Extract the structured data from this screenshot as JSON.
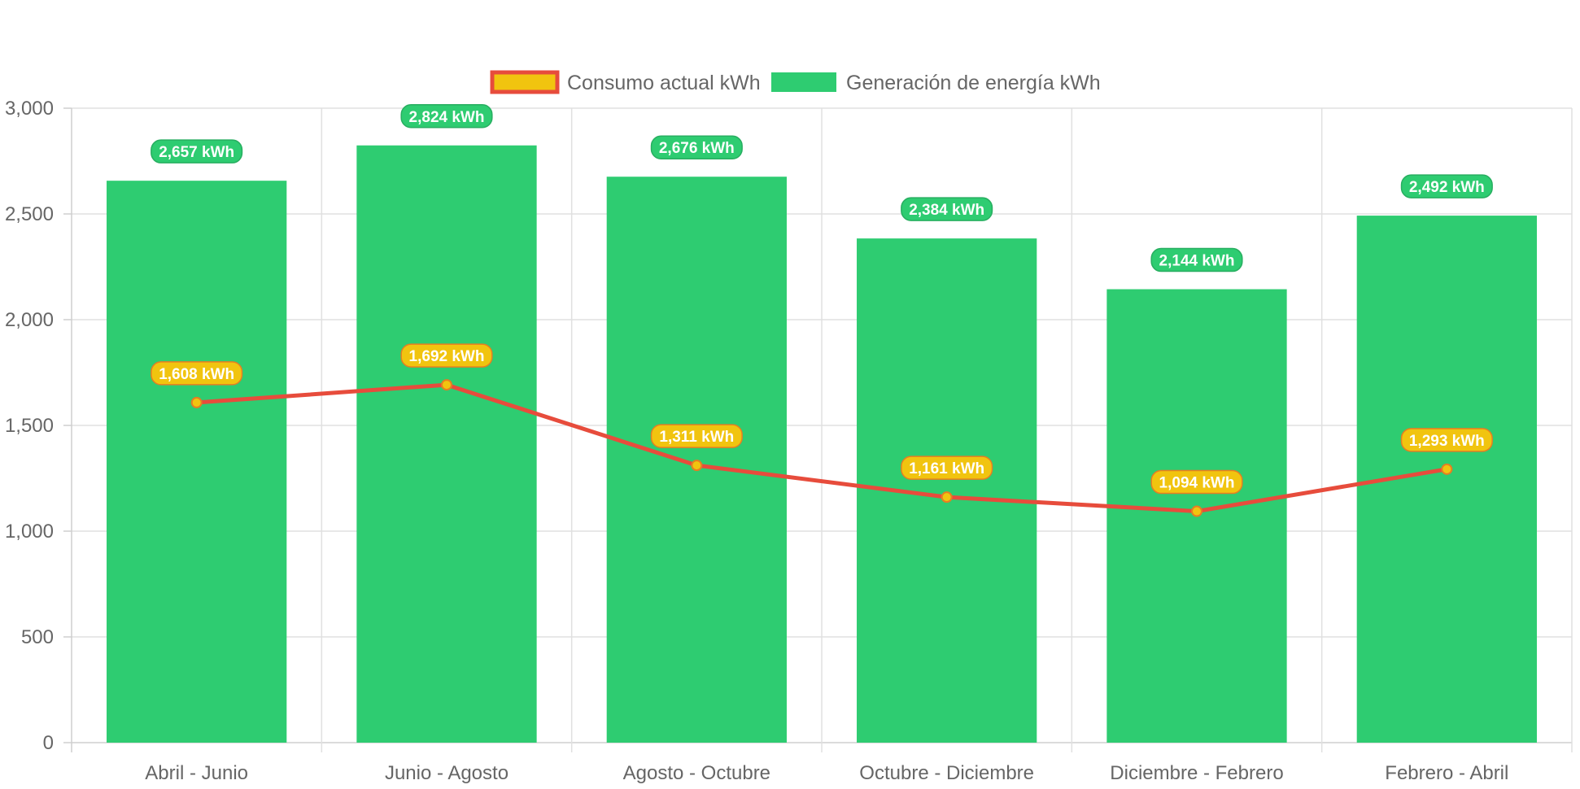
{
  "chart_data": {
    "type": "bar",
    "categories": [
      "Abril - Junio",
      "Junio - Agosto",
      "Agosto - Octubre",
      "Octubre - Diciembre",
      "Diciembre - Febrero",
      "Febrero - Abril"
    ],
    "series": [
      {
        "name": "Consumo actual kWh",
        "type": "line",
        "values": [
          1608,
          1692,
          1311,
          1161,
          1094,
          1293
        ],
        "labels": [
          "1,608 kWh",
          "1,692 kWh",
          "1,311 kWh",
          "1,161 kWh",
          "1,094 kWh",
          "1,293 kWh"
        ]
      },
      {
        "name": "Generación de energía kWh",
        "type": "bar",
        "values": [
          2657,
          2824,
          2676,
          2384,
          2144,
          2492
        ],
        "labels": [
          "2,657 kWh",
          "2,824 kWh",
          "2,676 kWh",
          "2,384 kWh",
          "2,144 kWh",
          "2,492 kWh"
        ]
      }
    ],
    "yticks": [
      "0",
      "500",
      "1,000",
      "1,500",
      "2,000",
      "2,500",
      "3,000"
    ],
    "ylim": [
      0,
      3000
    ],
    "grid": true,
    "legend_position": "top",
    "colors": {
      "bar_fill": "#2ecc71",
      "bar_label_border": "#27ae60",
      "line_stroke": "#e74c3c",
      "point_fill": "#f1c40f",
      "line_label_border": "#e67e22",
      "grid": "#e0e0e0",
      "axis": "#cfcfcf",
      "text": "#666666"
    }
  }
}
